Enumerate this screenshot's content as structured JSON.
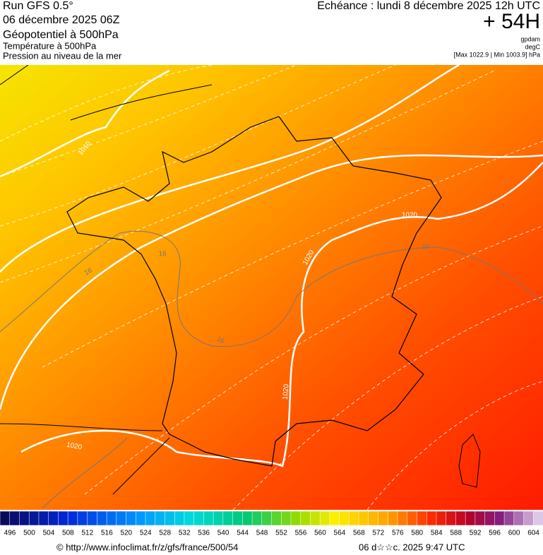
{
  "header": {
    "run": "Run GFS 0.5°",
    "date": "06 décembre 2025 06Z",
    "field1": "Géopotentiel à 500hPa",
    "field2": "Température à 500hPa",
    "field3": "Pression au niveau de la mer",
    "valid": "Echéance : lundi 8 décembre 2025 12h UTC",
    "lead": "+ 54H",
    "unit1": "gpdam",
    "unit2": "degC",
    "range": "[Max 1022.9 | Min 1003.9] hPa"
  },
  "map": {
    "contour_labels": [
      "1010",
      "1020",
      "1020",
      "1020",
      "1020",
      "16",
      "16",
      "16",
      "16"
    ]
  },
  "colorbar": {
    "labels": [
      496,
      500,
      504,
      508,
      512,
      516,
      520,
      524,
      528,
      532,
      536,
      540,
      544,
      548,
      552,
      556,
      560,
      564,
      568,
      572,
      576,
      580,
      584,
      588,
      592,
      596,
      600,
      604
    ]
  },
  "footer": {
    "source": "© http://www.infoclimat.fr/z/gfs/france/500/54",
    "stamp": "06 d☆☆c. 2025  9:47 UTC"
  }
}
